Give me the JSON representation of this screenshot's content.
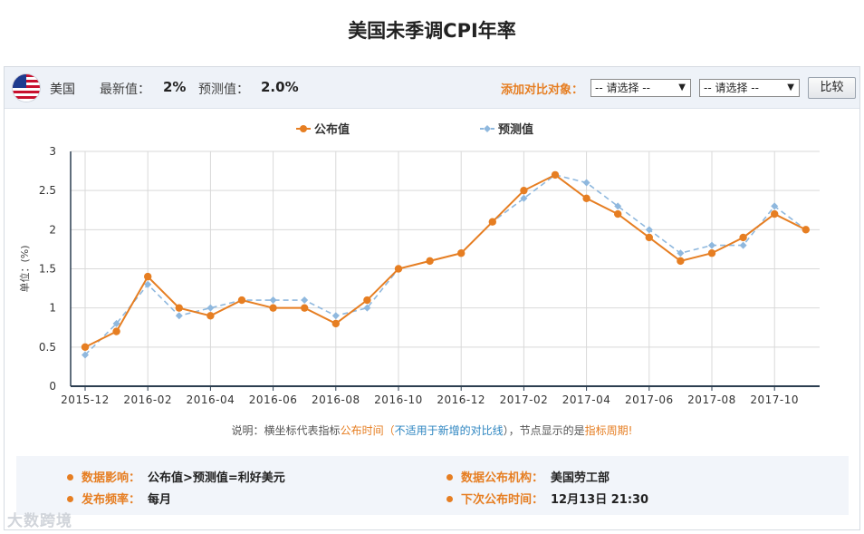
{
  "page_title": "美国未季调CPI年率",
  "header": {
    "country": "美国",
    "latest_label": "最新值：",
    "latest_value": "2%",
    "forecast_label": "预测值：",
    "forecast_value": "2.0%",
    "compare_label": "添加对比对象：",
    "select_1": "-- 请选择 --",
    "select_2": "-- 请选择 --",
    "compare_button": "比较"
  },
  "chart_data": {
    "type": "line",
    "x": [
      "2015-12",
      "2016-01",
      "2016-02",
      "2016-03",
      "2016-04",
      "2016-05",
      "2016-06",
      "2016-07",
      "2016-08",
      "2016-09",
      "2016-10",
      "2016-11",
      "2016-12",
      "2017-01",
      "2017-02",
      "2017-03",
      "2017-04",
      "2017-05",
      "2017-06",
      "2017-07",
      "2017-08",
      "2017-09",
      "2017-10",
      "2017-11"
    ],
    "tick_labels": [
      "2015-12",
      "2016-02",
      "2016-04",
      "2016-06",
      "2016-08",
      "2016-10",
      "2016-12",
      "2017-02",
      "2017-04",
      "2017-06",
      "2017-08",
      "2017-10"
    ],
    "series": [
      {
        "name": "公布值",
        "color": "#e67e22",
        "style": "solid-circle",
        "values": [
          0.5,
          0.7,
          1.4,
          1.0,
          0.9,
          1.1,
          1.0,
          1.0,
          0.8,
          1.1,
          1.5,
          1.6,
          1.7,
          2.1,
          2.5,
          2.7,
          2.4,
          2.2,
          1.9,
          1.6,
          1.7,
          1.9,
          2.2,
          2.0
        ]
      },
      {
        "name": "预测值",
        "color": "#8fb8de",
        "style": "dashed-diamond",
        "values": [
          0.4,
          0.8,
          1.3,
          0.9,
          1.0,
          1.1,
          1.1,
          1.1,
          0.9,
          1.0,
          1.5,
          1.6,
          1.7,
          2.1,
          2.4,
          2.7,
          2.6,
          2.3,
          2.0,
          1.7,
          1.8,
          1.8,
          2.3,
          2.0
        ]
      }
    ],
    "ylabel": "单位：(%)",
    "ylim": [
      0,
      3
    ],
    "yticks": [
      "0",
      "0.5",
      "1",
      "1.5",
      "2",
      "2.5",
      "3"
    ],
    "grid": true,
    "legend_placement": "top-center"
  },
  "note": {
    "p1": "说明：横坐标代表指标",
    "p2": "公布时间",
    "p3": "（",
    "p4": "不适用于新增的对比线",
    "p5": "），节点显示的是",
    "p6": "指标周期",
    "p7": "!"
  },
  "info": {
    "impact_label": "数据影响：",
    "impact_value": "公布值>预测值=利好美元",
    "agency_label": "数据公布机构：",
    "agency_value": "美国劳工部",
    "frequency_label": "发布频率：",
    "frequency_value": "每月",
    "next_label": "下次公布时间：",
    "next_value": "12月13日 21:30"
  },
  "watermark": "大数跨境",
  "colors": {
    "accent": "#e67e22",
    "forecast": "#8fb8de",
    "axis": "#2c3e50"
  }
}
